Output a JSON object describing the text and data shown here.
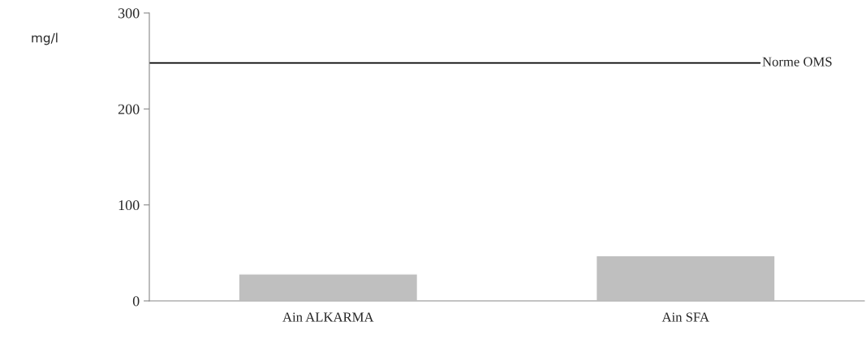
{
  "chart_data": {
    "type": "bar",
    "ylabel": "mg/l",
    "categories": [
      "Ain ALKARMA",
      "Ain SFA"
    ],
    "values": [
      28,
      47
    ],
    "color": "#bfbfbf",
    "ylim": [
      0,
      300
    ],
    "yticks": [
      0,
      100,
      200,
      300
    ],
    "grid": false,
    "legend": false,
    "ref_lines": [
      {
        "axis": "y",
        "value": 248,
        "label": "Norme OMS",
        "color": "#000000",
        "line_style": "solid"
      }
    ]
  }
}
